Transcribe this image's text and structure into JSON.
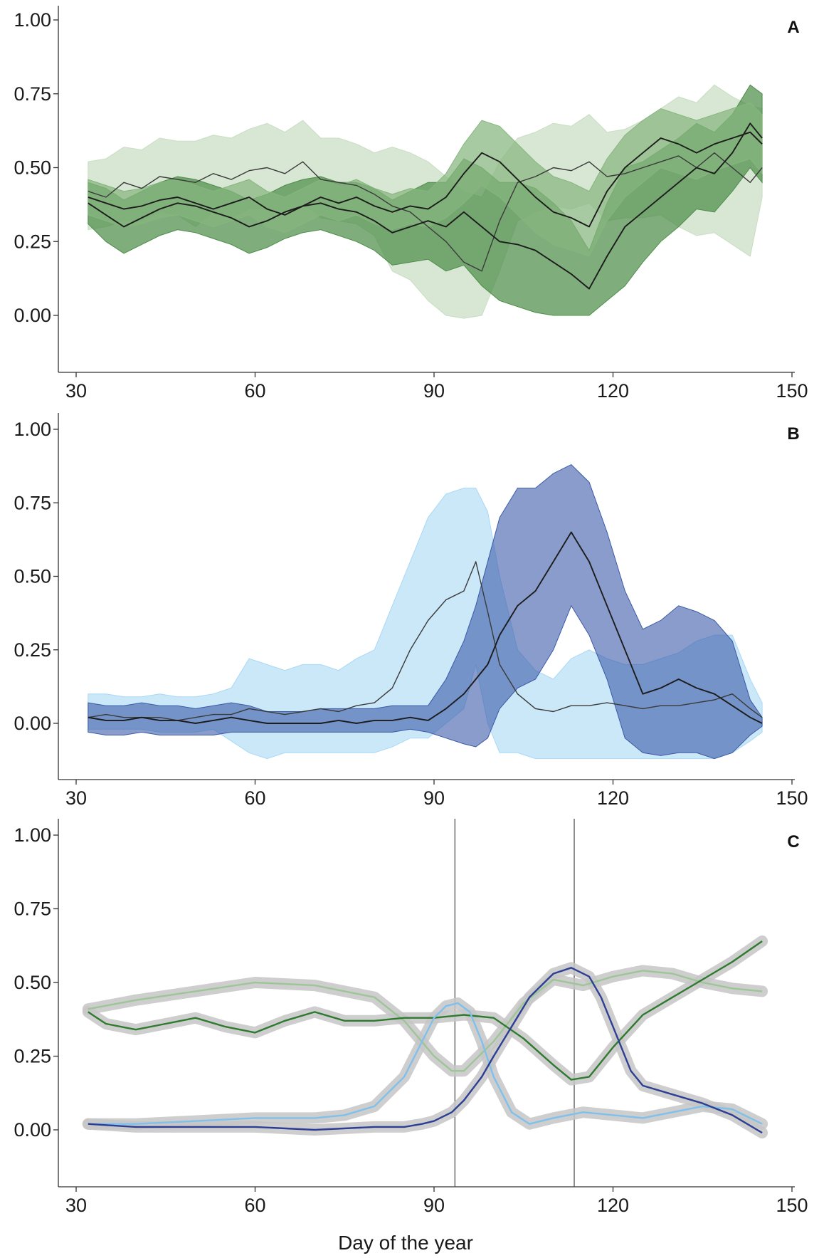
{
  "chart_data": [
    {
      "panel": "A",
      "type": "line",
      "xlim": [
        30,
        150
      ],
      "ylim": [
        -0.18,
        1.05
      ],
      "x_ticks": [
        "30",
        "60",
        "90",
        "120",
        "150"
      ],
      "y_ticks": [
        "0.00",
        "0.25",
        "0.50",
        "0.75",
        "1.00"
      ],
      "band_colors": [
        "#c9ddc3",
        "#4e8e4a",
        "#86b67e"
      ],
      "series": [
        {
          "x": [
            32,
            35,
            38,
            41,
            44,
            47,
            50,
            53,
            56,
            59,
            62,
            65,
            68,
            71,
            74,
            77,
            80,
            83,
            86,
            89,
            92,
            95,
            98,
            101,
            104,
            107,
            110,
            113,
            116,
            119,
            122,
            125,
            128,
            131,
            134,
            137,
            140,
            143,
            145
          ],
          "y": [
            0.42,
            0.4,
            0.45,
            0.43,
            0.47,
            0.46,
            0.45,
            0.48,
            0.46,
            0.49,
            0.5,
            0.48,
            0.52,
            0.46,
            0.45,
            0.44,
            0.41,
            0.37,
            0.35,
            0.3,
            0.25,
            0.18,
            0.15,
            0.32,
            0.45,
            0.47,
            0.5,
            0.49,
            0.52,
            0.47,
            0.48,
            0.5,
            0.52,
            0.54,
            0.5,
            0.55,
            0.5,
            0.45,
            0.5
          ],
          "lower": [
            0.29,
            0.3,
            0.32,
            0.32,
            0.35,
            0.34,
            0.3,
            0.35,
            0.33,
            0.36,
            0.36,
            0.35,
            0.38,
            0.33,
            0.32,
            0.31,
            0.27,
            0.15,
            0.12,
            0.05,
            0.0,
            -0.01,
            0.0,
            0.15,
            0.32,
            0.35,
            0.37,
            0.36,
            0.38,
            0.32,
            0.33,
            0.33,
            0.34,
            0.3,
            0.27,
            0.28,
            0.24,
            0.2,
            0.4
          ],
          "upper": [
            0.52,
            0.53,
            0.57,
            0.56,
            0.6,
            0.59,
            0.59,
            0.61,
            0.6,
            0.63,
            0.65,
            0.62,
            0.66,
            0.6,
            0.6,
            0.58,
            0.55,
            0.57,
            0.55,
            0.52,
            0.47,
            0.42,
            0.4,
            0.52,
            0.6,
            0.62,
            0.65,
            0.64,
            0.68,
            0.62,
            0.63,
            0.66,
            0.7,
            0.74,
            0.72,
            0.78,
            0.74,
            0.71,
            0.7
          ]
        },
        {
          "x": [
            32,
            35,
            38,
            41,
            44,
            47,
            50,
            53,
            56,
            59,
            62,
            65,
            68,
            71,
            74,
            77,
            80,
            83,
            86,
            89,
            92,
            95,
            98,
            101,
            104,
            107,
            110,
            113,
            116,
            119,
            122,
            125,
            128,
            131,
            134,
            137,
            140,
            143,
            145
          ],
          "y": [
            0.38,
            0.34,
            0.3,
            0.33,
            0.36,
            0.38,
            0.37,
            0.35,
            0.33,
            0.3,
            0.32,
            0.35,
            0.37,
            0.38,
            0.36,
            0.35,
            0.32,
            0.28,
            0.3,
            0.32,
            0.3,
            0.35,
            0.3,
            0.25,
            0.24,
            0.22,
            0.18,
            0.14,
            0.09,
            0.2,
            0.3,
            0.35,
            0.4,
            0.45,
            0.5,
            0.48,
            0.55,
            0.65,
            0.6
          ],
          "lower": [
            0.31,
            0.25,
            0.21,
            0.24,
            0.27,
            0.29,
            0.28,
            0.26,
            0.24,
            0.21,
            0.23,
            0.26,
            0.28,
            0.29,
            0.27,
            0.25,
            0.22,
            0.17,
            0.18,
            0.19,
            0.15,
            0.17,
            0.1,
            0.05,
            0.03,
            0.01,
            0.0,
            0.0,
            0.0,
            0.05,
            0.1,
            0.18,
            0.25,
            0.3,
            0.36,
            0.35,
            0.42,
            0.5,
            0.45
          ],
          "upper": [
            0.45,
            0.43,
            0.39,
            0.42,
            0.45,
            0.47,
            0.46,
            0.44,
            0.42,
            0.39,
            0.41,
            0.44,
            0.46,
            0.47,
            0.45,
            0.45,
            0.43,
            0.39,
            0.42,
            0.45,
            0.45,
            0.53,
            0.5,
            0.45,
            0.45,
            0.43,
            0.38,
            0.32,
            0.22,
            0.38,
            0.5,
            0.52,
            0.56,
            0.6,
            0.65,
            0.62,
            0.68,
            0.78,
            0.75
          ]
        },
        {
          "x": [
            32,
            35,
            38,
            41,
            44,
            47,
            50,
            53,
            56,
            59,
            62,
            65,
            68,
            71,
            74,
            77,
            80,
            83,
            86,
            89,
            92,
            95,
            98,
            101,
            104,
            107,
            110,
            113,
            116,
            119,
            122,
            125,
            128,
            131,
            134,
            137,
            140,
            143,
            145
          ],
          "y": [
            0.4,
            0.38,
            0.36,
            0.37,
            0.39,
            0.4,
            0.38,
            0.36,
            0.38,
            0.4,
            0.36,
            0.34,
            0.37,
            0.4,
            0.38,
            0.4,
            0.37,
            0.35,
            0.37,
            0.36,
            0.4,
            0.48,
            0.55,
            0.52,
            0.46,
            0.4,
            0.35,
            0.33,
            0.3,
            0.42,
            0.5,
            0.55,
            0.6,
            0.58,
            0.55,
            0.58,
            0.6,
            0.62,
            0.58
          ],
          "lower": [
            0.34,
            0.32,
            0.3,
            0.31,
            0.33,
            0.34,
            0.32,
            0.3,
            0.32,
            0.34,
            0.3,
            0.28,
            0.31,
            0.34,
            0.32,
            0.34,
            0.31,
            0.29,
            0.31,
            0.3,
            0.33,
            0.38,
            0.44,
            0.4,
            0.34,
            0.28,
            0.24,
            0.22,
            0.2,
            0.32,
            0.4,
            0.45,
            0.5,
            0.48,
            0.46,
            0.49,
            0.51,
            0.53,
            0.48
          ],
          "upper": [
            0.46,
            0.44,
            0.42,
            0.43,
            0.45,
            0.46,
            0.44,
            0.42,
            0.44,
            0.46,
            0.42,
            0.4,
            0.43,
            0.46,
            0.44,
            0.46,
            0.43,
            0.41,
            0.43,
            0.42,
            0.48,
            0.58,
            0.66,
            0.64,
            0.58,
            0.52,
            0.47,
            0.45,
            0.42,
            0.53,
            0.61,
            0.66,
            0.7,
            0.68,
            0.66,
            0.68,
            0.7,
            0.72,
            0.68
          ]
        }
      ]
    },
    {
      "panel": "B",
      "type": "line",
      "xlim": [
        30,
        150
      ],
      "ylim": [
        -0.18,
        1.05
      ],
      "x_ticks": [
        "30",
        "60",
        "90",
        "120",
        "150"
      ],
      "y_ticks": [
        "0.00",
        "0.25",
        "0.50",
        "0.75",
        "1.00"
      ],
      "band_colors": [
        "#a9d8f5",
        "#3b5aa8"
      ],
      "series": [
        {
          "x": [
            32,
            35,
            38,
            41,
            44,
            47,
            50,
            53,
            56,
            59,
            62,
            65,
            68,
            71,
            74,
            77,
            80,
            83,
            86,
            89,
            92,
            95,
            97,
            99,
            101,
            104,
            107,
            110,
            113,
            116,
            119,
            122,
            125,
            128,
            131,
            134,
            137,
            140,
            143,
            145
          ],
          "y": [
            0.02,
            0.03,
            0.02,
            0.02,
            0.02,
            0.01,
            0.02,
            0.03,
            0.03,
            0.05,
            0.04,
            0.03,
            0.04,
            0.05,
            0.04,
            0.06,
            0.07,
            0.12,
            0.25,
            0.35,
            0.42,
            0.45,
            0.55,
            0.38,
            0.2,
            0.1,
            0.05,
            0.04,
            0.06,
            0.06,
            0.07,
            0.06,
            0.05,
            0.06,
            0.06,
            0.07,
            0.08,
            0.1,
            0.05,
            0.02
          ],
          "lower": [
            -0.02,
            -0.02,
            -0.02,
            -0.02,
            -0.03,
            -0.03,
            -0.03,
            -0.02,
            -0.06,
            -0.1,
            -0.12,
            -0.1,
            -0.1,
            -0.1,
            -0.1,
            -0.1,
            -0.1,
            -0.08,
            -0.05,
            -0.05,
            0.0,
            0.05,
            0.2,
            0.0,
            -0.1,
            -0.1,
            -0.12,
            -0.12,
            -0.12,
            -0.12,
            -0.12,
            -0.12,
            -0.12,
            -0.12,
            -0.12,
            -0.12,
            -0.12,
            -0.1,
            -0.06,
            -0.03
          ],
          "upper": [
            0.1,
            0.1,
            0.09,
            0.09,
            0.1,
            0.09,
            0.09,
            0.1,
            0.12,
            0.22,
            0.2,
            0.18,
            0.2,
            0.2,
            0.18,
            0.22,
            0.25,
            0.4,
            0.55,
            0.7,
            0.78,
            0.8,
            0.8,
            0.72,
            0.5,
            0.25,
            0.18,
            0.15,
            0.22,
            0.25,
            0.22,
            0.2,
            0.2,
            0.22,
            0.24,
            0.28,
            0.3,
            0.3,
            0.15,
            0.07
          ]
        },
        {
          "x": [
            32,
            35,
            38,
            41,
            44,
            47,
            50,
            53,
            56,
            59,
            62,
            65,
            68,
            71,
            74,
            77,
            80,
            83,
            86,
            89,
            92,
            95,
            97,
            99,
            101,
            104,
            107,
            110,
            113,
            116,
            119,
            122,
            125,
            128,
            131,
            134,
            137,
            140,
            143,
            145
          ],
          "y": [
            0.02,
            0.01,
            0.01,
            0.02,
            0.01,
            0.01,
            0.0,
            0.01,
            0.02,
            0.01,
            0.0,
            0.0,
            0.0,
            0.0,
            0.01,
            0.0,
            0.01,
            0.01,
            0.02,
            0.01,
            0.05,
            0.1,
            0.15,
            0.2,
            0.3,
            0.4,
            0.45,
            0.55,
            0.65,
            0.55,
            0.4,
            0.25,
            0.1,
            0.12,
            0.15,
            0.12,
            0.1,
            0.06,
            0.02,
            0.0
          ],
          "lower": [
            -0.03,
            -0.04,
            -0.04,
            -0.03,
            -0.04,
            -0.04,
            -0.04,
            -0.04,
            -0.03,
            -0.03,
            -0.03,
            -0.03,
            -0.03,
            -0.03,
            -0.03,
            -0.03,
            -0.03,
            -0.03,
            -0.02,
            -0.03,
            -0.05,
            -0.07,
            -0.08,
            -0.05,
            0.05,
            0.12,
            0.15,
            0.25,
            0.4,
            0.3,
            0.15,
            -0.05,
            -0.1,
            -0.11,
            -0.1,
            -0.1,
            -0.12,
            -0.1,
            -0.04,
            -0.01
          ],
          "upper": [
            0.07,
            0.06,
            0.06,
            0.07,
            0.06,
            0.06,
            0.05,
            0.06,
            0.07,
            0.06,
            0.04,
            0.04,
            0.04,
            0.05,
            0.05,
            0.05,
            0.05,
            0.06,
            0.06,
            0.06,
            0.15,
            0.28,
            0.4,
            0.55,
            0.7,
            0.8,
            0.8,
            0.85,
            0.88,
            0.82,
            0.65,
            0.45,
            0.32,
            0.35,
            0.4,
            0.38,
            0.35,
            0.28,
            0.08,
            0.02
          ]
        }
      ]
    },
    {
      "panel": "C",
      "type": "line",
      "xlim": [
        30,
        150
      ],
      "ylim": [
        -0.18,
        1.05
      ],
      "x_ticks": [
        "30",
        "60",
        "90",
        "120",
        "150"
      ],
      "y_ticks": [
        "0.00",
        "0.25",
        "0.50",
        "0.75",
        "1.00"
      ],
      "xlabel": "Day of the year",
      "vlines": [
        93.5,
        113.5
      ],
      "ci_color": "#c6c6c6",
      "series": [
        {
          "color": "#9cc696",
          "x": [
            32,
            40,
            50,
            60,
            70,
            80,
            85,
            90,
            93,
            95,
            100,
            105,
            110,
            115,
            120,
            125,
            130,
            135,
            140,
            145
          ],
          "y": [
            0.41,
            0.44,
            0.47,
            0.5,
            0.49,
            0.45,
            0.37,
            0.25,
            0.2,
            0.2,
            0.3,
            0.43,
            0.51,
            0.49,
            0.52,
            0.54,
            0.53,
            0.5,
            0.48,
            0.47
          ]
        },
        {
          "color": "#2e7a2e",
          "x": [
            32,
            35,
            40,
            45,
            50,
            55,
            60,
            65,
            70,
            75,
            80,
            85,
            90,
            95,
            100,
            105,
            110,
            113,
            116,
            120,
            125,
            130,
            135,
            140,
            145
          ],
          "y": [
            0.4,
            0.36,
            0.34,
            0.36,
            0.38,
            0.35,
            0.33,
            0.37,
            0.4,
            0.37,
            0.37,
            0.38,
            0.38,
            0.39,
            0.38,
            0.31,
            0.22,
            0.17,
            0.18,
            0.28,
            0.39,
            0.45,
            0.51,
            0.57,
            0.64
          ]
        },
        {
          "color": "#7fc0ec",
          "x": [
            32,
            40,
            50,
            60,
            70,
            75,
            80,
            85,
            88,
            90,
            92,
            94,
            96,
            98,
            100,
            103,
            106,
            110,
            115,
            120,
            125,
            130,
            135,
            140,
            145
          ],
          "y": [
            0.02,
            0.02,
            0.03,
            0.04,
            0.04,
            0.05,
            0.08,
            0.18,
            0.3,
            0.38,
            0.42,
            0.43,
            0.4,
            0.3,
            0.18,
            0.06,
            0.02,
            0.04,
            0.06,
            0.05,
            0.04,
            0.06,
            0.08,
            0.07,
            0.02
          ]
        },
        {
          "color": "#2c3f94",
          "x": [
            32,
            40,
            50,
            60,
            70,
            80,
            85,
            88,
            90,
            93,
            95,
            98,
            100,
            103,
            106,
            110,
            113,
            116,
            118,
            120,
            123,
            125,
            130,
            135,
            140,
            145
          ],
          "y": [
            0.02,
            0.01,
            0.01,
            0.01,
            0.0,
            0.01,
            0.01,
            0.02,
            0.03,
            0.06,
            0.1,
            0.18,
            0.25,
            0.35,
            0.45,
            0.53,
            0.55,
            0.52,
            0.45,
            0.35,
            0.2,
            0.15,
            0.12,
            0.09,
            0.05,
            -0.01
          ]
        }
      ]
    }
  ]
}
